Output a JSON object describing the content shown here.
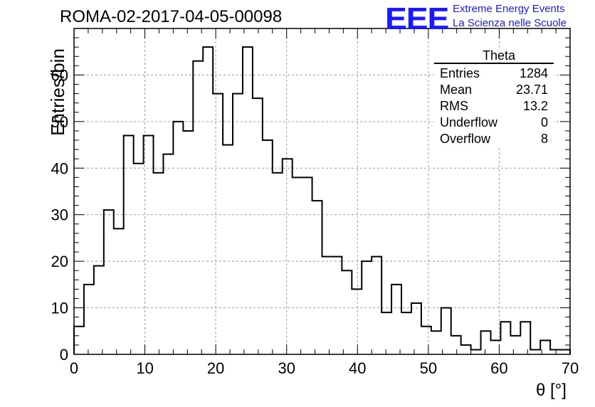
{
  "header": {
    "title": "ROMA-02-2017-04-05-00098"
  },
  "logo": {
    "mark": "EEE",
    "line1": "Extreme Energy Events",
    "line2": "La Scienza nelle Scuole"
  },
  "stats": {
    "title": "Theta",
    "rows": [
      {
        "label": "Entries",
        "value": "1284"
      },
      {
        "label": "Mean",
        "value": "23.71"
      },
      {
        "label": "RMS",
        "value": "13.2"
      },
      {
        "label": "Underflow",
        "value": "0"
      },
      {
        "label": "Overflow",
        "value": "8"
      }
    ]
  },
  "chart_data": {
    "type": "bar",
    "title": "ROMA-02-2017-04-05-00098",
    "xlabel": "θ [°]",
    "ylabel": "Entries/bin",
    "xlim": [
      0,
      70
    ],
    "ylim": [
      0,
      70
    ],
    "bin_width": 1.4,
    "x_bin_edges_start": 0,
    "values": [
      6,
      15,
      19,
      31,
      27,
      47,
      41,
      47,
      39,
      43,
      50,
      48,
      63,
      66,
      56,
      45,
      56,
      66,
      55,
      46,
      39,
      42,
      38,
      38,
      33,
      21,
      21,
      18,
      14,
      20,
      21,
      9,
      15,
      9,
      11,
      6,
      5,
      10,
      4,
      2,
      1,
      5,
      3,
      7,
      4,
      7,
      1,
      3,
      1,
      1
    ],
    "xticks": [
      0,
      10,
      20,
      30,
      40,
      50,
      60,
      70
    ],
    "yticks": [
      0,
      10,
      20,
      30,
      40,
      50,
      60
    ],
    "grid": true,
    "colors": {
      "line": "#000000",
      "grid": "#9a9a9a",
      "logo": "#1a1aff"
    }
  }
}
